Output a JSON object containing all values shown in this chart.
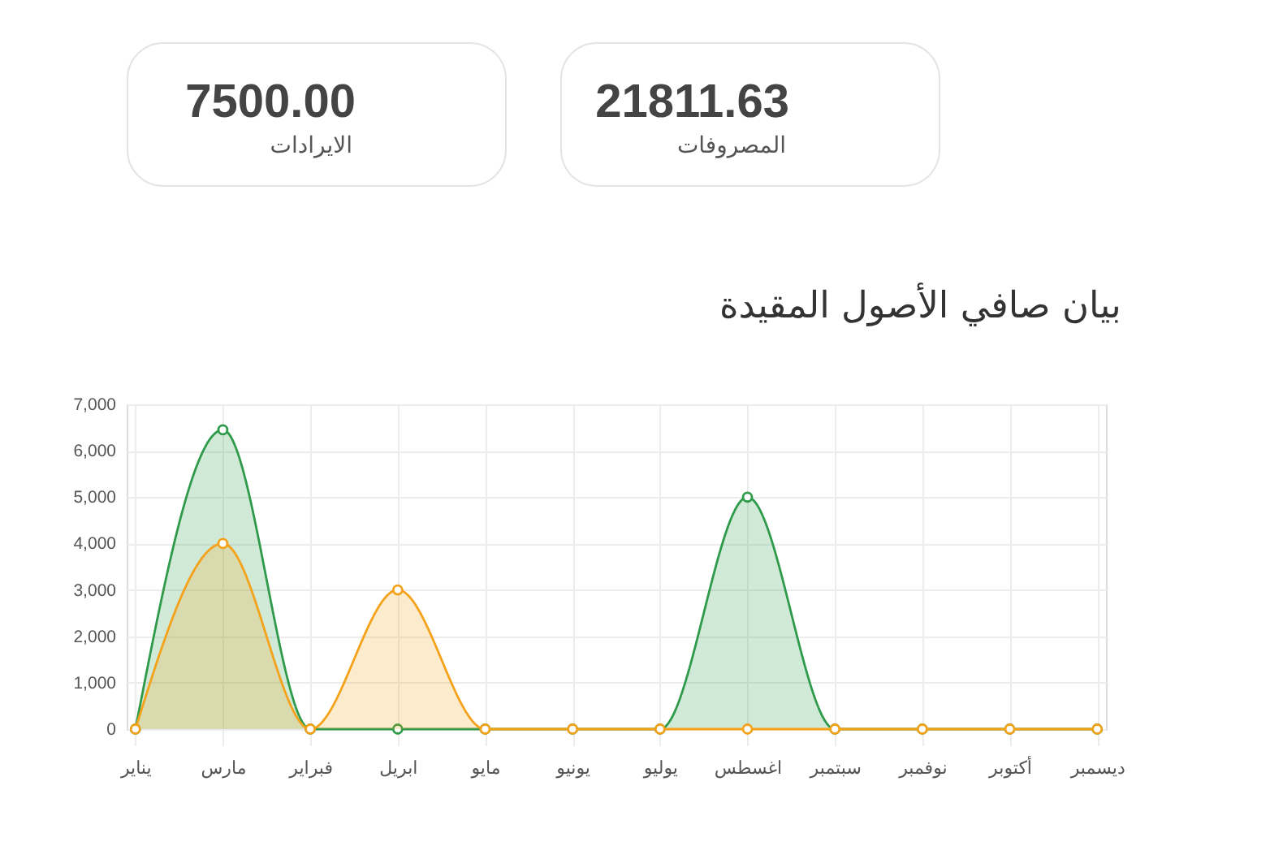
{
  "chart_data": [
    {
      "type": "other",
      "title": "7500.00",
      "subtitle": "الايرادات"
    },
    {
      "type": "other",
      "title": "21811.63",
      "subtitle": "المصروفات"
    },
    {
      "type": "area",
      "title": "بيان صافي الأصول المقيدة",
      "categories": [
        "يناير",
        "مارس",
        "فبراير",
        "ابريل",
        "مايو",
        "يونيو",
        "يوليو",
        "اغسطس",
        "سبتمبر",
        "نوفمبر",
        "أكتوبر",
        "ديسمبر"
      ],
      "series": [
        {
          "color": "#2e9a4a",
          "values": [
            0,
            6450,
            0,
            0,
            0,
            0,
            0,
            5000,
            0,
            0,
            0,
            0
          ]
        },
        {
          "color": "#f5a21b",
          "values": [
            0,
            4000,
            0,
            3000,
            0,
            0,
            0,
            0,
            0,
            0,
            0,
            0
          ]
        }
      ],
      "ylim": [
        0,
        7000
      ],
      "yticks": [
        0,
        {
          "value": 1000,
          "label": "1,000"
        },
        {
          "value": 2000,
          "label": "2,000"
        },
        {
          "value": 3000,
          "label": "3,000"
        },
        {
          "value": 4000,
          "label": "4,000"
        },
        {
          "value": 5000,
          "label": "5,000"
        },
        {
          "value": 6000,
          "label": "6,000"
        },
        {
          "value": 7000,
          "label": "7,000"
        }
      ],
      "grid": true,
      "marker": "circle"
    }
  ]
}
